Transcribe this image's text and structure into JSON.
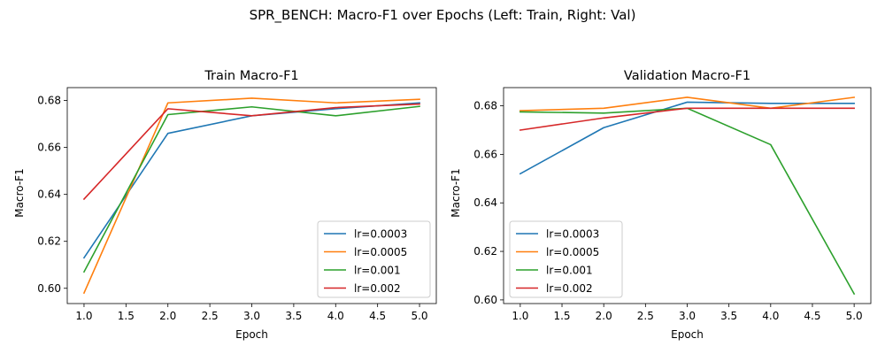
{
  "figure": {
    "suptitle": "SPR_BENCH: Macro-F1 over Epochs (Left: Train, Right: Val)"
  },
  "chart_data": [
    {
      "type": "line",
      "title": "Train Macro-F1",
      "xlabel": "Epoch",
      "ylabel": "Macro-F1",
      "xlim": [
        0.8,
        5.2
      ],
      "ylim": [
        0.5935,
        0.6855
      ],
      "xticks": [
        1.0,
        1.5,
        2.0,
        2.5,
        3.0,
        3.5,
        4.0,
        4.5,
        5.0
      ],
      "yticks": [
        0.6,
        0.62,
        0.64,
        0.66,
        0.68
      ],
      "grid": false,
      "legend_position": "lower-right",
      "x": [
        1,
        2,
        3,
        4,
        5
      ],
      "series": [
        {
          "name": "lr=0.0003",
          "color": "#1f77b4",
          "values": [
            0.613,
            0.666,
            0.6735,
            0.6765,
            0.679
          ]
        },
        {
          "name": "lr=0.0005",
          "color": "#ff7f0e",
          "values": [
            0.598,
            0.679,
            0.681,
            0.679,
            0.6805
          ]
        },
        {
          "name": "lr=0.001",
          "color": "#2ca02c",
          "values": [
            0.607,
            0.674,
            0.6773,
            0.6735,
            0.6775
          ]
        },
        {
          "name": "lr=0.002",
          "color": "#d62728",
          "values": [
            0.638,
            0.6765,
            0.6735,
            0.677,
            0.6785
          ]
        }
      ]
    },
    {
      "type": "line",
      "title": "Validation Macro-F1",
      "xlabel": "Epoch",
      "ylabel": "Macro-F1",
      "xlim": [
        0.8,
        5.2
      ],
      "ylim": [
        0.5985,
        0.6875
      ],
      "xticks": [
        1.0,
        1.5,
        2.0,
        2.5,
        3.0,
        3.5,
        4.0,
        4.5,
        5.0
      ],
      "yticks": [
        0.6,
        0.62,
        0.64,
        0.66,
        0.68
      ],
      "grid": false,
      "legend_position": "lower-left",
      "x": [
        1,
        2,
        3,
        4,
        5
      ],
      "series": [
        {
          "name": "lr=0.0003",
          "color": "#1f77b4",
          "values": [
            0.652,
            0.671,
            0.6815,
            0.681,
            0.681
          ]
        },
        {
          "name": "lr=0.0005",
          "color": "#ff7f0e",
          "values": [
            0.678,
            0.679,
            0.6835,
            0.679,
            0.6835
          ]
        },
        {
          "name": "lr=0.001",
          "color": "#2ca02c",
          "values": [
            0.6775,
            0.677,
            0.679,
            0.664,
            0.6025
          ]
        },
        {
          "name": "lr=0.002",
          "color": "#d62728",
          "values": [
            0.67,
            0.675,
            0.679,
            0.679,
            0.679
          ]
        }
      ]
    }
  ]
}
